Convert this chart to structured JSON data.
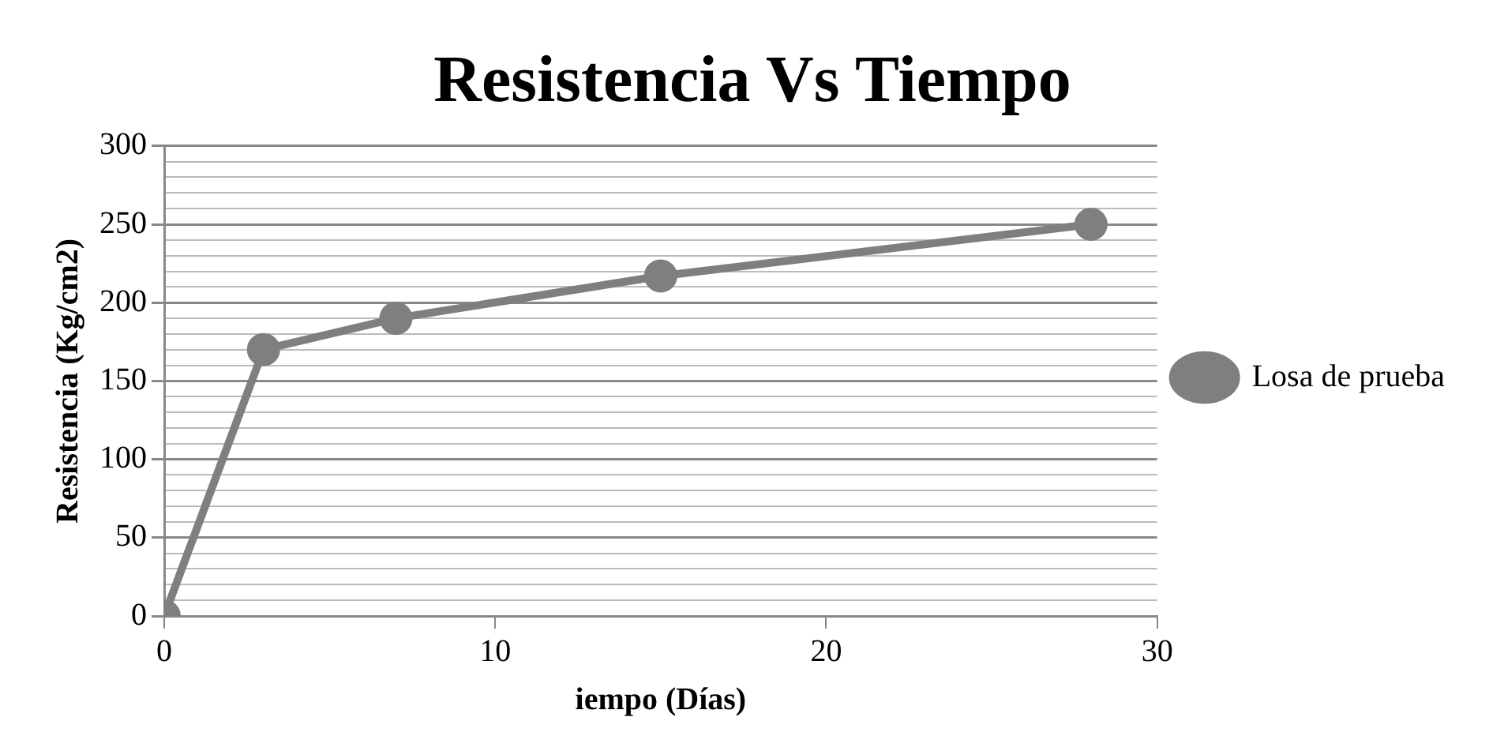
{
  "chart_data": {
    "type": "line",
    "title": "Resistencia Vs Tiempo",
    "xlabel": "iempo (Días)",
    "ylabel": "Resistencia (Kg/cm2)",
    "x": [
      0,
      3,
      7,
      15,
      28
    ],
    "series": [
      {
        "name": "Losa de prueba",
        "color": "#7f7f7f",
        "values": [
          0,
          170,
          190,
          217,
          250
        ]
      }
    ],
    "xlim": [
      0,
      30
    ],
    "xticks": [
      0,
      10,
      20,
      30
    ],
    "ylim": [
      0,
      300
    ],
    "yticks": [
      0,
      {
        "value": 10,
        "label": null
      },
      {
        "value": 20,
        "label": null
      },
      {
        "value": 30,
        "label": null
      },
      {
        "value": 40,
        "label": null
      },
      50,
      {
        "value": 60,
        "label": null
      },
      {
        "value": 70,
        "label": null
      },
      {
        "value": 80,
        "label": null
      },
      {
        "value": 90,
        "label": null
      },
      100,
      {
        "value": 110,
        "label": null
      },
      {
        "value": 120,
        "label": null
      },
      {
        "value": 130,
        "label": null
      },
      {
        "value": 140,
        "label": null
      },
      150,
      {
        "value": 160,
        "label": null
      },
      {
        "value": 170,
        "label": null
      },
      {
        "value": 180,
        "label": null
      },
      {
        "value": 190,
        "label": null
      },
      200,
      {
        "value": 210,
        "label": null
      },
      {
        "value": 220,
        "label": null
      },
      {
        "value": 230,
        "label": null
      },
      {
        "value": 240,
        "label": null
      },
      250,
      {
        "value": 260,
        "label": null
      },
      {
        "value": 270,
        "label": null
      },
      {
        "value": 280,
        "label": null
      },
      {
        "value": 290,
        "label": null
      },
      300
    ],
    "grid": "y",
    "legend": "right",
    "marker": "circle",
    "line_style": "solid"
  }
}
